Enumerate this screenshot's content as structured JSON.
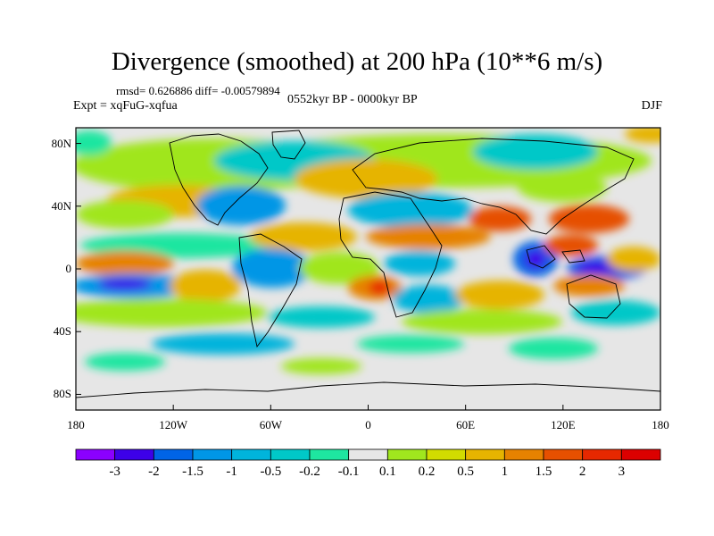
{
  "title": "Divergence (smoothed) at 200 hPa (10**6 m/s)",
  "stats": "rmsd= 0.626886 diff= -0.00579894",
  "experiment": "Expt = xqFuG-xqfua",
  "period": "0552kyr BP - 0000kyr BP",
  "season": "DJF",
  "lat_ticks": [
    {
      "value": 80,
      "label": "80N"
    },
    {
      "value": 40,
      "label": "40N"
    },
    {
      "value": 0,
      "label": "0"
    },
    {
      "value": -40,
      "label": "40S"
    },
    {
      "value": -80,
      "label": "80S"
    }
  ],
  "lon_ticks": [
    {
      "value": -180,
      "label": "180"
    },
    {
      "value": -120,
      "label": "120W"
    },
    {
      "value": -60,
      "label": "60W"
    },
    {
      "value": 0,
      "label": "0"
    },
    {
      "value": 60,
      "label": "60E"
    },
    {
      "value": 120,
      "label": "120E"
    },
    {
      "value": 180,
      "label": "180"
    }
  ],
  "colorbar": {
    "levels": [
      "-3",
      "-2",
      "-1.5",
      "-1",
      "-0.5",
      "-0.2",
      "-0.1",
      "0.1",
      "0.2",
      "0.5",
      "1",
      "1.5",
      "2",
      "3"
    ],
    "colors": [
      "#8b00ff",
      "#3d00e8",
      "#0064e6",
      "#0096e6",
      "#00b4dc",
      "#00c8c8",
      "#1ee6a0",
      "#e6e6e6",
      "#a0e61e",
      "#d2dc00",
      "#e6b400",
      "#e68200",
      "#e65000",
      "#e62800",
      "#dc0000"
    ]
  }
}
